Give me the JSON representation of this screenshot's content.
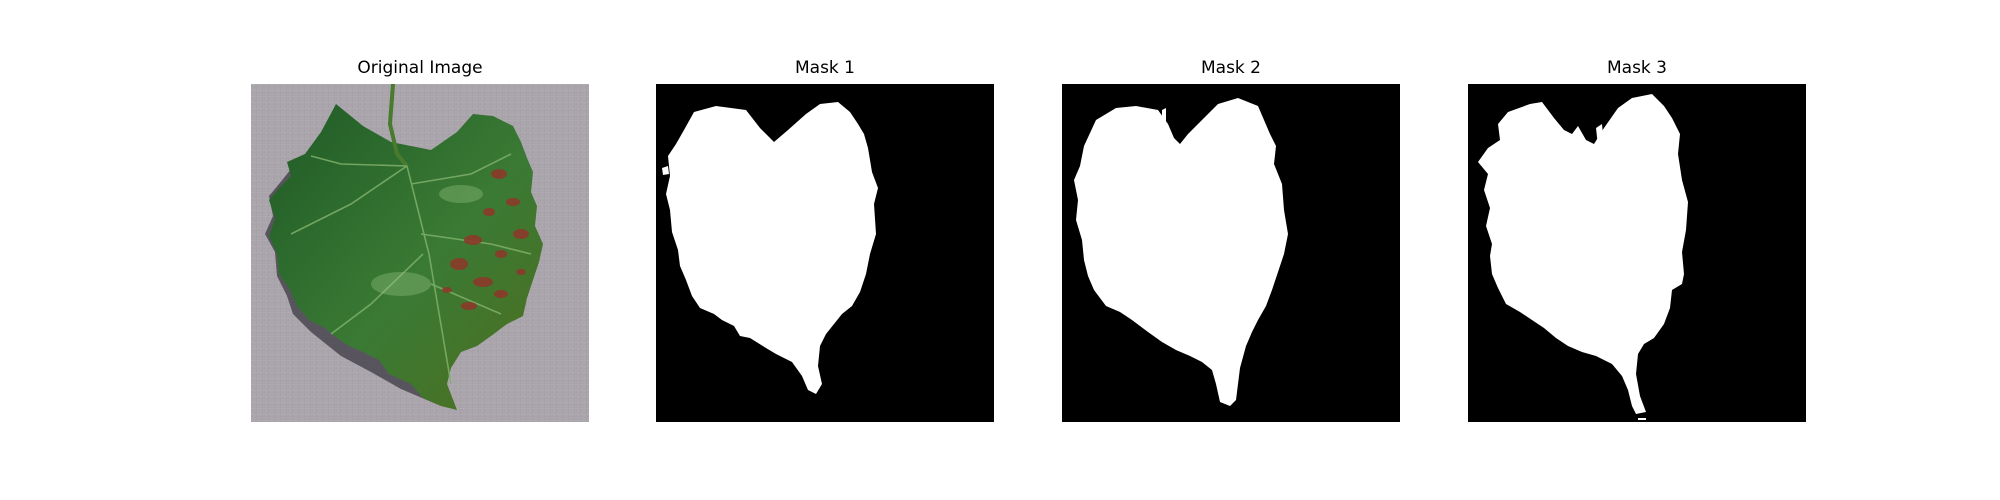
{
  "figure": {
    "panels": [
      {
        "title": "Original Image",
        "image": "grape-leaf-photo"
      },
      {
        "title": "Mask 1",
        "image": "binary-mask"
      },
      {
        "title": "Mask 2",
        "image": "binary-mask"
      },
      {
        "title": "Mask 3",
        "image": "binary-mask"
      }
    ]
  },
  "colors": {
    "background": "#ffffff",
    "mask_background": "#000000",
    "mask_foreground": "#ffffff",
    "leaf_green": "#2f6a2f",
    "leaf_dark": "#1a3d1e",
    "lesion_brown": "#8b3a2a",
    "ground_gray": "#aaa4ab"
  }
}
